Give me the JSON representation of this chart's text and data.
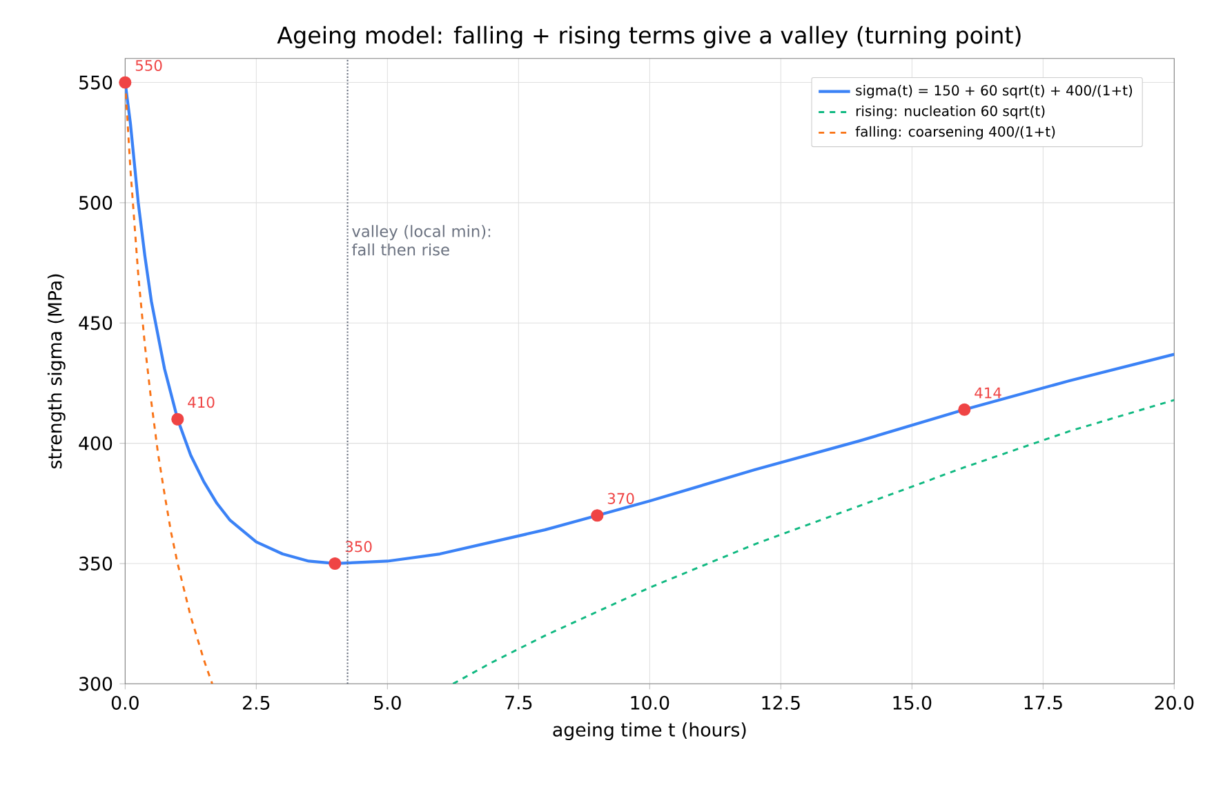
{
  "chart_data": {
    "type": "line",
    "title": "Ageing model: falling + rising terms give a valley (turning point)",
    "xlabel": "ageing time t (hours)",
    "ylabel": "strength sigma (MPa)",
    "xlim": [
      0,
      20
    ],
    "ylim": [
      300,
      560
    ],
    "xticks": [
      {
        "value": 0,
        "label": "0.0"
      },
      {
        "value": 2.5,
        "label": "2.5"
      },
      {
        "value": 5,
        "label": "5.0"
      },
      {
        "value": 7.5,
        "label": "7.5"
      },
      {
        "value": 10,
        "label": "10.0"
      },
      {
        "value": 12.5,
        "label": "12.5"
      },
      {
        "value": 15,
        "label": "15.0"
      },
      {
        "value": 17.5,
        "label": "17.5"
      },
      {
        "value": 20,
        "label": "20.0"
      }
    ],
    "yticks": [
      300,
      350,
      400,
      450,
      500,
      550
    ],
    "grid": true,
    "legend": "top right",
    "series": [
      {
        "name": "sigma(t) = 150 + 60 sqrt(t) + 400/(1+t)",
        "color": "#3b82f6",
        "type": "line",
        "line_style": "solid",
        "x": [
          0,
          0.1,
          0.25,
          0.375,
          0.5,
          0.75,
          1,
          1.25,
          1.5,
          1.75,
          2,
          2.5,
          3,
          3.5,
          4,
          5,
          6,
          7,
          8,
          9,
          10,
          12,
          14,
          16,
          18,
          20
        ],
        "values": [
          550,
          533,
          500,
          478,
          459,
          431,
          410,
          395,
          384,
          375,
          368,
          359,
          354,
          351,
          350,
          351,
          354,
          359,
          364,
          370,
          376,
          389,
          401,
          414,
          426,
          437
        ]
      },
      {
        "name": "rising: nucleation 60 sqrt(t)",
        "color": "#10b981",
        "type": "line",
        "line_style": "dashed",
        "x": [
          6.25,
          7,
          8,
          9,
          10,
          12,
          14,
          16,
          18,
          20
        ],
        "values": [
          300,
          309,
          320,
          330,
          340,
          358,
          374,
          390,
          405,
          418
        ]
      },
      {
        "name": "falling: coarsening 400/(1+t)",
        "color": "#f97316",
        "type": "line",
        "line_style": "dashed",
        "x": [
          0,
          0.1,
          0.25,
          0.375,
          0.5,
          0.625,
          0.75,
          0.875,
          1,
          1.25,
          1.5,
          1.66
        ],
        "values": [
          550,
          514,
          470,
          441,
          417,
          396,
          379,
          363,
          350,
          328,
          310,
          300
        ]
      },
      {
        "type": "scatter",
        "color": "#ef4444",
        "marker": "circle",
        "x": [
          0,
          1,
          4,
          9,
          16
        ],
        "values": [
          550,
          410,
          350,
          370,
          414
        ],
        "value_labels": [
          "550",
          "410",
          "350",
          "370",
          "414"
        ]
      }
    ],
    "ref_lines": [
      {
        "axis": "x",
        "value": 4.24,
        "label": "valley (local min): fall then rise",
        "color": "#6b7280",
        "line_style": "dotted"
      }
    ]
  }
}
